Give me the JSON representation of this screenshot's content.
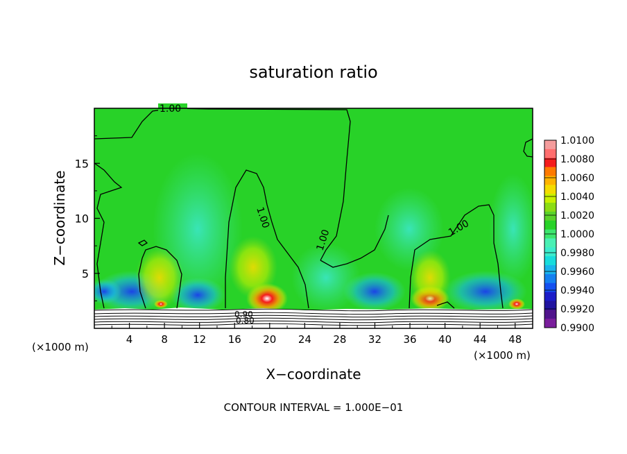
{
  "chart_data": {
    "type": "heatmap",
    "title": "saturation ratio",
    "xlabel": "X−coordinate",
    "ylabel": "Z−coordinate",
    "x_unit_left": "(×1000 m)",
    "x_unit_right": "(×1000 m)",
    "footer": "CONTOUR INTERVAL = 1.000E−01",
    "x_ticks": [
      "4",
      "8",
      "12",
      "16",
      "20",
      "24",
      "28",
      "32",
      "36",
      "40",
      "44",
      "48"
    ],
    "y_ticks": [
      "5",
      "10",
      "15"
    ],
    "xlim": [
      0,
      50
    ],
    "ylim": [
      0,
      20
    ],
    "contour_labels": [
      "1.00",
      "1.00",
      "1.00",
      "1.00",
      "0.90",
      "0.80"
    ],
    "colorbar": {
      "labels": [
        "1.0100",
        "1.0080",
        "1.0060",
        "1.0040",
        "1.0020",
        "1.0000",
        "0.9980",
        "0.9960",
        "0.9940",
        "0.9920",
        "0.9900"
      ],
      "colors": [
        "#f49c9c",
        "#ff6e6e",
        "#f41c1c",
        "#ff7a00",
        "#ffb400",
        "#f4dc00",
        "#c8f000",
        "#8cdc14",
        "#5ad22a",
        "#28d228",
        "#3ce66e",
        "#4af0b4",
        "#3ceccc",
        "#18dcdc",
        "#1ab4ec",
        "#1480f0",
        "#1450f0",
        "#1c1cc8",
        "#2014a0",
        "#50148c",
        "#7a1e9c"
      ]
    },
    "grid": false,
    "legend": "right"
  }
}
